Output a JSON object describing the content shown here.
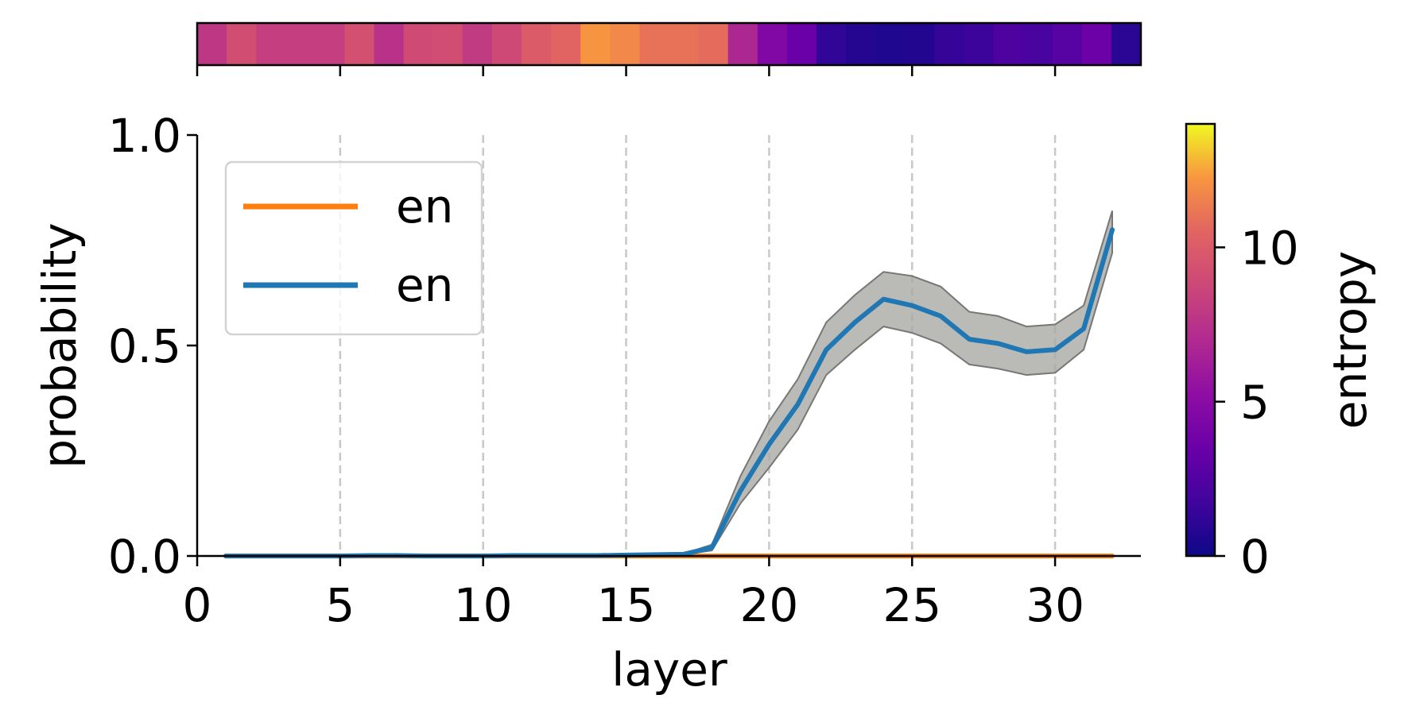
{
  "chart_data": {
    "type": "line",
    "xlabel": "layer",
    "ylabel": "probability",
    "xlim": [
      0,
      33
    ],
    "ylim": [
      0,
      1
    ],
    "xticks": [
      0,
      5,
      10,
      15,
      20,
      25,
      30
    ],
    "yticks": [
      0.0,
      0.5,
      1.0
    ],
    "ytick_labels": [
      "0.0",
      "0.5",
      "1.0"
    ],
    "grid": "vertical dashed at x ticks",
    "legend_position": "upper-left",
    "series": [
      {
        "name": "en",
        "color": "#ff7f0e",
        "x": [
          1,
          32
        ],
        "values": [
          0.0,
          0.0
        ]
      },
      {
        "name": "en",
        "color": "#1f77b4",
        "x": [
          1,
          2,
          3,
          4,
          5,
          6,
          7,
          8,
          9,
          10,
          11,
          12,
          13,
          14,
          15,
          16,
          17,
          18,
          19,
          20,
          21,
          22,
          23,
          24,
          25,
          26,
          27,
          28,
          29,
          30,
          31,
          32
        ],
        "values": [
          0.0,
          0.0,
          0.0,
          0.0,
          0.0,
          0.001,
          0.001,
          0.0,
          0.0,
          0.0,
          0.001,
          0.001,
          0.001,
          0.001,
          0.002,
          0.003,
          0.004,
          0.02,
          0.155,
          0.265,
          0.36,
          0.49,
          0.555,
          0.61,
          0.595,
          0.57,
          0.515,
          0.505,
          0.485,
          0.49,
          0.54,
          0.775
        ],
        "band_lower": [
          0.0,
          0.0,
          0.0,
          0.0,
          0.0,
          0.0,
          0.0,
          0.0,
          0.0,
          0.0,
          0.0,
          0.0,
          0.0,
          0.0,
          0.001,
          0.002,
          0.003,
          0.013,
          0.125,
          0.21,
          0.3,
          0.43,
          0.49,
          0.545,
          0.53,
          0.505,
          0.455,
          0.445,
          0.43,
          0.435,
          0.49,
          0.72
        ],
        "band_upper": [
          0.001,
          0.001,
          0.001,
          0.001,
          0.001,
          0.002,
          0.002,
          0.001,
          0.001,
          0.001,
          0.002,
          0.002,
          0.002,
          0.002,
          0.003,
          0.004,
          0.005,
          0.027,
          0.19,
          0.32,
          0.42,
          0.555,
          0.62,
          0.675,
          0.665,
          0.64,
          0.58,
          0.57,
          0.545,
          0.55,
          0.595,
          0.82
        ],
        "band_color": "#a9a9a4"
      }
    ],
    "top_strip": {
      "description": "entropy per layer",
      "values": [
        7.8,
        9.2,
        8.2,
        8.2,
        8.2,
        9.3,
        7.5,
        9.0,
        9.2,
        8.0,
        8.9,
        10.0,
        10.5,
        12.2,
        11.8,
        11.0,
        11.0,
        10.8,
        6.8,
        4.6,
        3.5,
        1.2,
        0.8,
        0.6,
        0.7,
        1.3,
        1.6,
        2.3,
        2.1,
        2.7,
        3.6,
        1.0
      ]
    },
    "colorbar": {
      "label": "entropy",
      "range": [
        0,
        14
      ],
      "ticks": [
        0,
        5,
        10
      ],
      "colormap": "plasma"
    }
  }
}
